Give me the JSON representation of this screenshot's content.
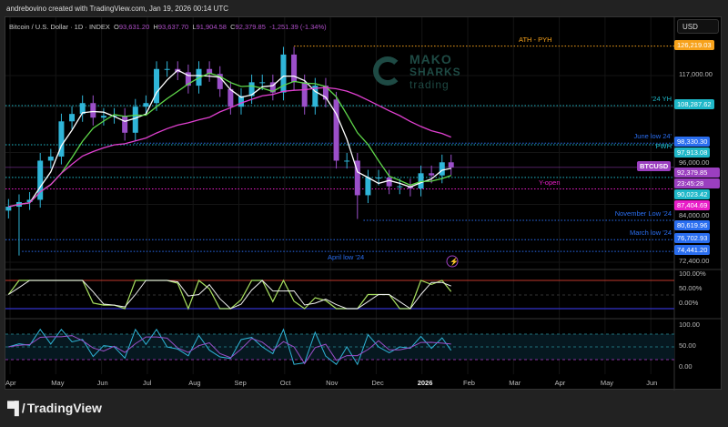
{
  "attribution": "andrebovino created with TradingView.com, Jan 19, 2026 00:14 UTC",
  "symbol": {
    "title": "Bitcoin / U.S. Dollar · 1D · INDEX",
    "o_label": "O",
    "o": "93,631.20",
    "h_label": "H",
    "h": "93,637.70",
    "l_label": "L",
    "l": "91,904.58",
    "c_label": "C",
    "c": "92,379.85",
    "change": "-1,251.39 (-1.34%)"
  },
  "currency_button": "USD",
  "watermark": [
    "MAKO",
    "SHARKS",
    "trading"
  ],
  "brand": "TradingView",
  "colors": {
    "up": "#2fb5d8",
    "down": "#9b4fc9",
    "ma_fast": "#ffffff",
    "ma_mid": "#5fd84a",
    "ma_slow": "#e040d0",
    "ath": "#f7a21b",
    "cyan": "#1fb8c9",
    "blue": "#2a6ef0",
    "purple": "#9b3fc0",
    "magenta": "#e91ec8"
  },
  "levels": [
    {
      "label": "ATH - PYH",
      "value": "126,219.03",
      "price": 126219.03,
      "color": "#f7a21b",
      "from": "2025-10-06"
    },
    {
      "label": "'24 YH",
      "value": "108,287.62",
      "price": 108287.62,
      "color": "#1fb8c9"
    },
    {
      "label": "June low 24'",
      "value": "98,330.30",
      "price": 98330.3,
      "color": "#2a6ef0",
      "from": "2025-06-22"
    },
    {
      "label": "PWH",
      "value": "97,913.08",
      "price": 97913.08,
      "color": "#1fb8c9"
    },
    {
      "label": "",
      "value": "90,023.42",
      "price": 90023.42,
      "color": "#1fb8c9"
    },
    {
      "label": "Y-open",
      "value": "87,404.69",
      "price": 87404.69,
      "color": "#e91ec8"
    },
    {
      "label": "November Low '24",
      "value": "80,619.96",
      "price": 80619.96,
      "color": "#2a6ef0",
      "from": "2025-11-21"
    },
    {
      "label": "March low '24",
      "value": "76,702.93",
      "price": 76702.93,
      "color": "#2a6ef0"
    },
    {
      "label": "April low '24",
      "value": "74,441.20",
      "price": 74441.2,
      "color": "#2a6ef0",
      "from": "2025-04-09"
    }
  ],
  "current": {
    "symbol": "BTCUSD",
    "price": "92,379.85",
    "countdown": "23:45:28"
  },
  "price_axis": [
    "117,000.00",
    "96,000.00",
    "84,000.00",
    "72,400.00"
  ],
  "osc1_axis": [
    "100.00%",
    "50.00%",
    "0.00%"
  ],
  "osc2_axis": [
    "100.00",
    "50.00",
    "0.00"
  ],
  "x_axis": [
    "Apr",
    "May",
    "Jun",
    "Jul",
    "Aug",
    "Sep",
    "Oct",
    "Nov",
    "Dec",
    "2026",
    "Feb",
    "Mar",
    "Apr",
    "May",
    "Jun"
  ],
  "chart_data": {
    "type": "candlestick",
    "scale": "log",
    "interval": "weekly approximation",
    "dates": [
      "2025-03-31",
      "2025-04-07",
      "2025-04-14",
      "2025-04-21",
      "2025-04-28",
      "2025-05-05",
      "2025-05-12",
      "2025-05-19",
      "2025-05-26",
      "2025-06-02",
      "2025-06-09",
      "2025-06-16",
      "2025-06-23",
      "2025-06-30",
      "2025-07-07",
      "2025-07-14",
      "2025-07-21",
      "2025-07-28",
      "2025-08-04",
      "2025-08-11",
      "2025-08-18",
      "2025-08-25",
      "2025-09-01",
      "2025-09-08",
      "2025-09-15",
      "2025-09-22",
      "2025-09-29",
      "2025-10-06",
      "2025-10-13",
      "2025-10-20",
      "2025-10-27",
      "2025-11-03",
      "2025-11-10",
      "2025-11-17",
      "2025-11-24",
      "2025-12-01",
      "2025-12-08",
      "2025-12-15",
      "2025-12-22",
      "2025-12-29",
      "2026-01-05",
      "2026-01-12",
      "2026-01-18"
    ],
    "close": [
      83500,
      84500,
      85000,
      94000,
      95000,
      104000,
      106000,
      109000,
      105000,
      105500,
      105500,
      101000,
      108000,
      109000,
      119000,
      119000,
      118000,
      114000,
      119000,
      117500,
      113000,
      108000,
      111000,
      115000,
      115000,
      112000,
      123500,
      115000,
      108000,
      114000,
      110000,
      94000,
      94000,
      86000,
      90000,
      90000,
      88000,
      88000,
      87500,
      91000,
      90500,
      93600,
      92379.85
    ],
    "ylim": [
      72400,
      130000
    ],
    "xlim": [
      "2025-04-01",
      "2026-06-15"
    ]
  }
}
